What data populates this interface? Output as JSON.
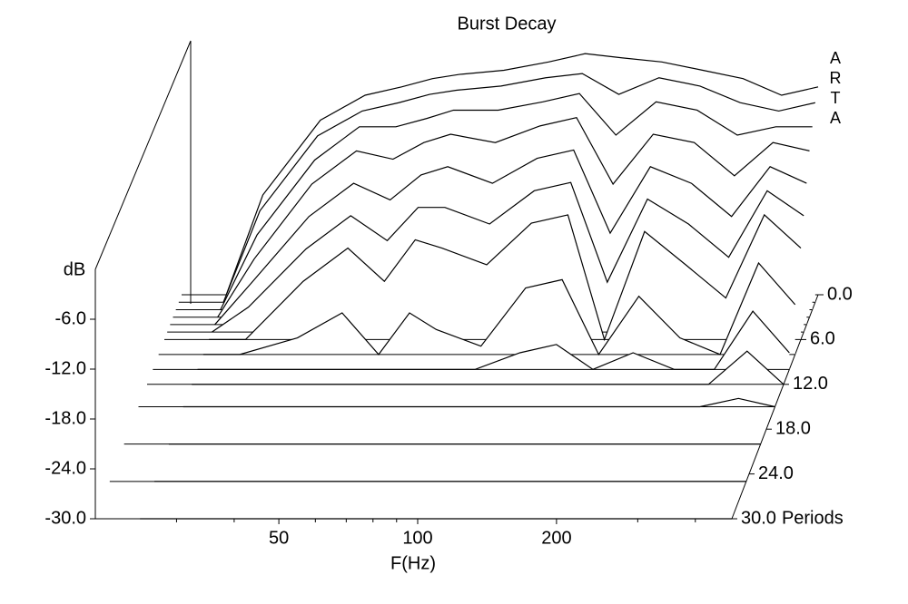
{
  "chart_data": {
    "type": "waterfall",
    "title": "Burst Decay",
    "xlabel": "F(Hz)",
    "ylabel": "dB",
    "zlabel": "Periods",
    "brand": "ARTA",
    "x": [
      25,
      30,
      40,
      50,
      60,
      70,
      80,
      100,
      125,
      150,
      180,
      220,
      270,
      330,
      400,
      480
    ],
    "xlim": [
      20,
      480
    ],
    "xscale": "log",
    "xticks": [
      50,
      100,
      200
    ],
    "xminorticks": [
      30,
      40,
      60,
      70,
      80,
      90,
      300,
      400
    ],
    "ylim": [
      -30,
      0
    ],
    "yticks": [
      {
        "value": -30,
        "label": "-30.0"
      },
      {
        "value": -24,
        "label": "-24.0"
      },
      {
        "value": -18,
        "label": "-18.0"
      },
      {
        "value": -12,
        "label": "-12.0"
      },
      {
        "value": -6,
        "label": "-6.0"
      }
    ],
    "zlim": [
      0,
      30
    ],
    "zticks": [
      {
        "value": 0,
        "label": "0.0"
      },
      {
        "value": 6,
        "label": "6.0"
      },
      {
        "value": 12,
        "label": "12.0"
      },
      {
        "value": 18,
        "label": "18.0"
      },
      {
        "value": 24,
        "label": "24.0"
      },
      {
        "value": 30,
        "label": "30.0"
      }
    ],
    "color": "#000000",
    "slices": [
      {
        "z": 0,
        "values": [
          -30,
          -18,
          -9,
          -6,
          -5,
          -4,
          -3.5,
          -3,
          -2,
          -1,
          -1.5,
          -2,
          -3,
          -4,
          -6,
          -5
        ]
      },
      {
        "z": 1,
        "values": [
          -30,
          -19,
          -10,
          -7,
          -6,
          -5,
          -4.5,
          -4,
          -3,
          -2.5,
          -5,
          -3,
          -4,
          -6,
          -7,
          -6
        ]
      },
      {
        "z": 2,
        "values": [
          -30,
          -21,
          -12,
          -8,
          -8,
          -7,
          -6,
          -6,
          -5,
          -4,
          -9,
          -5,
          -6,
          -9,
          -8,
          -8
        ]
      },
      {
        "z": 3,
        "values": [
          -30,
          -23,
          -14,
          -10,
          -11,
          -9,
          -8,
          -9,
          -7,
          -6,
          -14,
          -8,
          -9,
          -13,
          -9,
          -10
        ]
      },
      {
        "z": 4,
        "values": [
          -30,
          -25,
          -17,
          -13,
          -15,
          -12,
          -11,
          -13,
          -10,
          -9,
          -19,
          -11,
          -13,
          -17,
          -11,
          -13
        ]
      },
      {
        "z": 5,
        "values": [
          -30,
          -27,
          -20,
          -16,
          -19,
          -15,
          -15,
          -17,
          -13,
          -12,
          -24,
          -14,
          -17,
          -21,
          -13,
          -16
        ]
      },
      {
        "z": 6,
        "values": [
          -30,
          -30,
          -23,
          -19,
          -23,
          -18,
          -19,
          -21,
          -16,
          -15,
          -30,
          -17,
          -21,
          -25,
          -15,
          -19
        ]
      },
      {
        "z": 8,
        "values": [
          -30,
          -30,
          -28,
          -25,
          -30,
          -25,
          -27,
          -29,
          -22,
          -21,
          -30,
          -23,
          -28,
          -30,
          -19,
          -24
        ]
      },
      {
        "z": 10,
        "values": [
          -30,
          -30,
          -30,
          -30,
          -30,
          -30,
          -30,
          -30,
          -28,
          -27,
          -30,
          -28,
          -30,
          -30,
          -23,
          -28
        ]
      },
      {
        "z": 12,
        "values": [
          -30,
          -30,
          -30,
          -30,
          -30,
          -30,
          -30,
          -30,
          -30,
          -30,
          -30,
          -30,
          -30,
          -30,
          -26,
          -30
        ]
      },
      {
        "z": 15,
        "values": [
          -30,
          -30,
          -30,
          -30,
          -30,
          -30,
          -30,
          -30,
          -30,
          -30,
          -30,
          -30,
          -30,
          -30,
          -29,
          -30
        ]
      },
      {
        "z": 20,
        "values": [
          -30,
          -30,
          -30,
          -30,
          -30,
          -30,
          -30,
          -30,
          -30,
          -30,
          -30,
          -30,
          -30,
          -30,
          -30,
          -30
        ]
      },
      {
        "z": 25,
        "values": [
          -30,
          -30,
          -30,
          -30,
          -30,
          -30,
          -30,
          -30,
          -30,
          -30,
          -30,
          -30,
          -30,
          -30,
          -30,
          -30
        ]
      },
      {
        "z": 30,
        "values": [
          -30,
          -30,
          -30,
          -30,
          -30,
          -30,
          -30,
          -30,
          -30,
          -30,
          -30,
          -30,
          -30,
          -30,
          -30,
          -30
        ]
      }
    ]
  }
}
